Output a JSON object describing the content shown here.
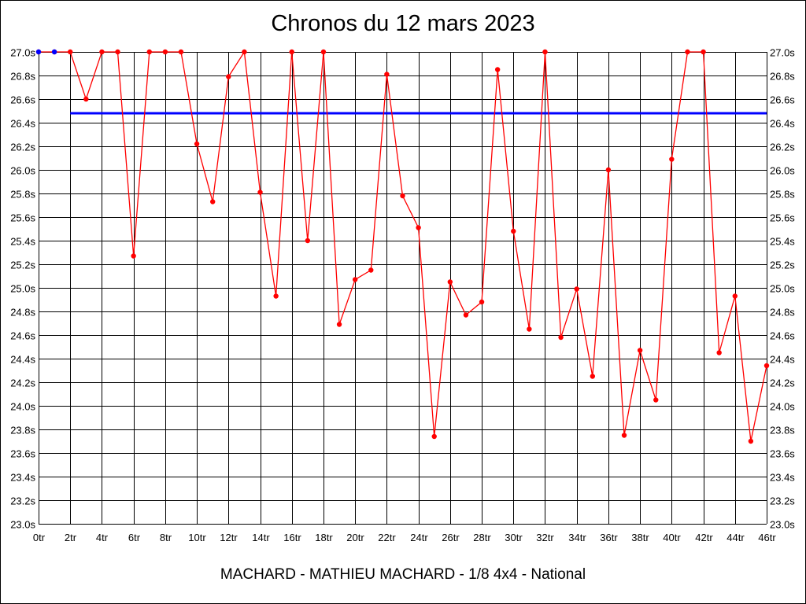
{
  "chart_data": {
    "type": "line",
    "title": "Chronos du 12 mars 2023",
    "footer": "MACHARD - MATHIEU MACHARD - 1/8 4x4 - National",
    "xlim": [
      0,
      46
    ],
    "ylim": [
      23.0,
      27.0
    ],
    "x_tick_labels": [
      "0tr",
      "2tr",
      "4tr",
      "6tr",
      "8tr",
      "10tr",
      "12tr",
      "14tr",
      "16tr",
      "18tr",
      "20tr",
      "22tr",
      "24tr",
      "26tr",
      "28tr",
      "30tr",
      "32tr",
      "34tr",
      "36tr",
      "38tr",
      "40tr",
      "42tr",
      "44tr",
      "46tr"
    ],
    "y_tick_labels": [
      "23.0s",
      "23.2s",
      "23.4s",
      "23.6s",
      "23.8s",
      "24.0s",
      "24.2s",
      "24.4s",
      "24.6s",
      "24.8s",
      "25.0s",
      "25.2s",
      "25.4s",
      "25.6s",
      "25.8s",
      "26.0s",
      "26.2s",
      "26.4s",
      "26.6s",
      "26.8s",
      "27.0s"
    ],
    "grid": true,
    "series": [
      {
        "color": "#ff0000",
        "x": [
          0,
          1,
          2,
          3,
          4,
          5,
          6,
          7,
          8,
          9,
          10,
          11,
          12,
          13,
          14,
          15,
          16,
          17,
          18,
          19,
          20,
          21,
          22,
          23,
          24,
          25,
          26,
          27,
          28,
          29,
          30,
          31,
          32,
          33,
          34,
          35,
          36,
          37,
          38,
          39,
          40,
          41,
          42,
          43,
          44,
          45,
          46
        ],
        "y": [
          27.0,
          27.0,
          27.0,
          26.6,
          27.0,
          27.0,
          25.27,
          27.0,
          27.0,
          27.0,
          26.22,
          25.73,
          26.79,
          27.0,
          25.81,
          24.93,
          27.0,
          25.4,
          27.0,
          24.69,
          25.07,
          25.15,
          26.81,
          25.78,
          25.51,
          23.74,
          25.05,
          24.77,
          24.88,
          26.85,
          25.48,
          24.65,
          27.0,
          24.58,
          24.99,
          24.25,
          26.0,
          23.75,
          24.47,
          24.05,
          26.09,
          27.0,
          27.0,
          24.45,
          24.93,
          23.7,
          24.34
        ]
      }
    ],
    "overlay_points": {
      "color": "#0000ff",
      "x": [
        0,
        1
      ],
      "y": [
        27.0,
        27.0
      ]
    },
    "reference_line": {
      "color": "#0000ff",
      "y": 26.48,
      "x_start": 2,
      "x_end": 46
    }
  }
}
